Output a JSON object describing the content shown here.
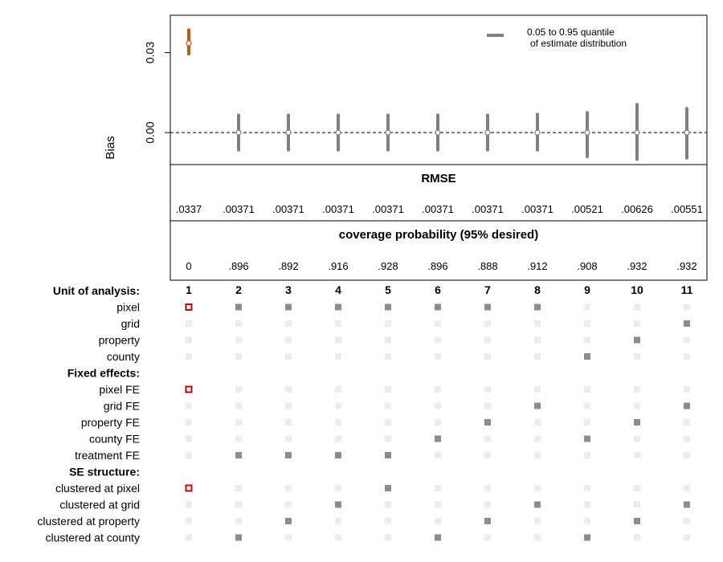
{
  "chart_data": {
    "type": "scatter",
    "subtype": "specification-curve",
    "ylabel": "Bias",
    "y_ticks": [
      0.0,
      0.03
    ],
    "y_tick_labels": [
      "0.00",
      "0.03"
    ],
    "ylim": [
      -0.012,
      0.044
    ],
    "reference_line": 0,
    "legend": {
      "text_line1": "0.05 to 0.95 quantile",
      "text_line2": "of estimate distribution",
      "position": "top-right"
    },
    "models": [
      {
        "id": "1",
        "bias": 0.0335,
        "q05": 0.0295,
        "q95": 0.0385,
        "highlight": true
      },
      {
        "id": "2",
        "bias": 0.0,
        "q05": -0.0065,
        "q95": 0.0065
      },
      {
        "id": "3",
        "bias": 0.0,
        "q05": -0.0065,
        "q95": 0.0065
      },
      {
        "id": "4",
        "bias": 0.0,
        "q05": -0.0065,
        "q95": 0.0065
      },
      {
        "id": "5",
        "bias": 0.0,
        "q05": -0.0065,
        "q95": 0.0065
      },
      {
        "id": "6",
        "bias": 0.0,
        "q05": -0.0065,
        "q95": 0.0065
      },
      {
        "id": "7",
        "bias": 0.0,
        "q05": -0.0065,
        "q95": 0.0065
      },
      {
        "id": "8",
        "bias": 0.0,
        "q05": -0.0065,
        "q95": 0.0068
      },
      {
        "id": "9",
        "bias": 0.0,
        "q05": -0.009,
        "q95": 0.0075
      },
      {
        "id": "10",
        "bias": 0.0,
        "q05": -0.01,
        "q95": 0.0105
      },
      {
        "id": "11",
        "bias": 0.0,
        "q05": -0.0095,
        "q95": 0.009
      }
    ],
    "rmse": {
      "title": "RMSE",
      "values": [
        ".0337",
        ".00371",
        ".00371",
        ".00371",
        ".00371",
        ".00371",
        ".00371",
        ".00371",
        ".00521",
        ".00626",
        ".00551"
      ]
    },
    "coverage": {
      "title": "coverage probability (95% desired)",
      "values": [
        "0",
        ".896",
        ".892",
        ".916",
        ".928",
        ".896",
        ".888",
        ".912",
        ".908",
        ".932",
        ".932"
      ]
    },
    "spec_rows": [
      {
        "label": "Unit of analysis:",
        "header": true
      },
      {
        "label": "pixel",
        "active": [
          1,
          2,
          3,
          4,
          5,
          6,
          7,
          8
        ]
      },
      {
        "label": "grid",
        "active": [
          11
        ]
      },
      {
        "label": "property",
        "active": [
          10
        ]
      },
      {
        "label": "county",
        "active": [
          9
        ]
      },
      {
        "label": "Fixed effects:",
        "header": true
      },
      {
        "label": "pixel FE",
        "active": [
          1
        ]
      },
      {
        "label": "grid FE",
        "active": [
          8,
          11
        ]
      },
      {
        "label": "property FE",
        "active": [
          7,
          10
        ]
      },
      {
        "label": "county FE",
        "active": [
          6,
          9
        ]
      },
      {
        "label": "treatment FE",
        "active": [
          2,
          3,
          4,
          5
        ]
      },
      {
        "label": "SE structure:",
        "header": true
      },
      {
        "label": "clustered at pixel",
        "active": [
          1,
          5
        ]
      },
      {
        "label": "clustered at grid",
        "active": [
          4,
          8,
          11
        ]
      },
      {
        "label": "clustered at property",
        "active": [
          3,
          7,
          10
        ]
      },
      {
        "label": "clustered at county",
        "active": [
          2,
          6,
          9
        ]
      }
    ],
    "colors": {
      "highlight": "#c55a11",
      "highlight_box": "#c00000",
      "bar": "#808080",
      "point_fill": "#ffffff",
      "active_square": "#8c8c8c",
      "inactive_square": "#ececec"
    }
  }
}
